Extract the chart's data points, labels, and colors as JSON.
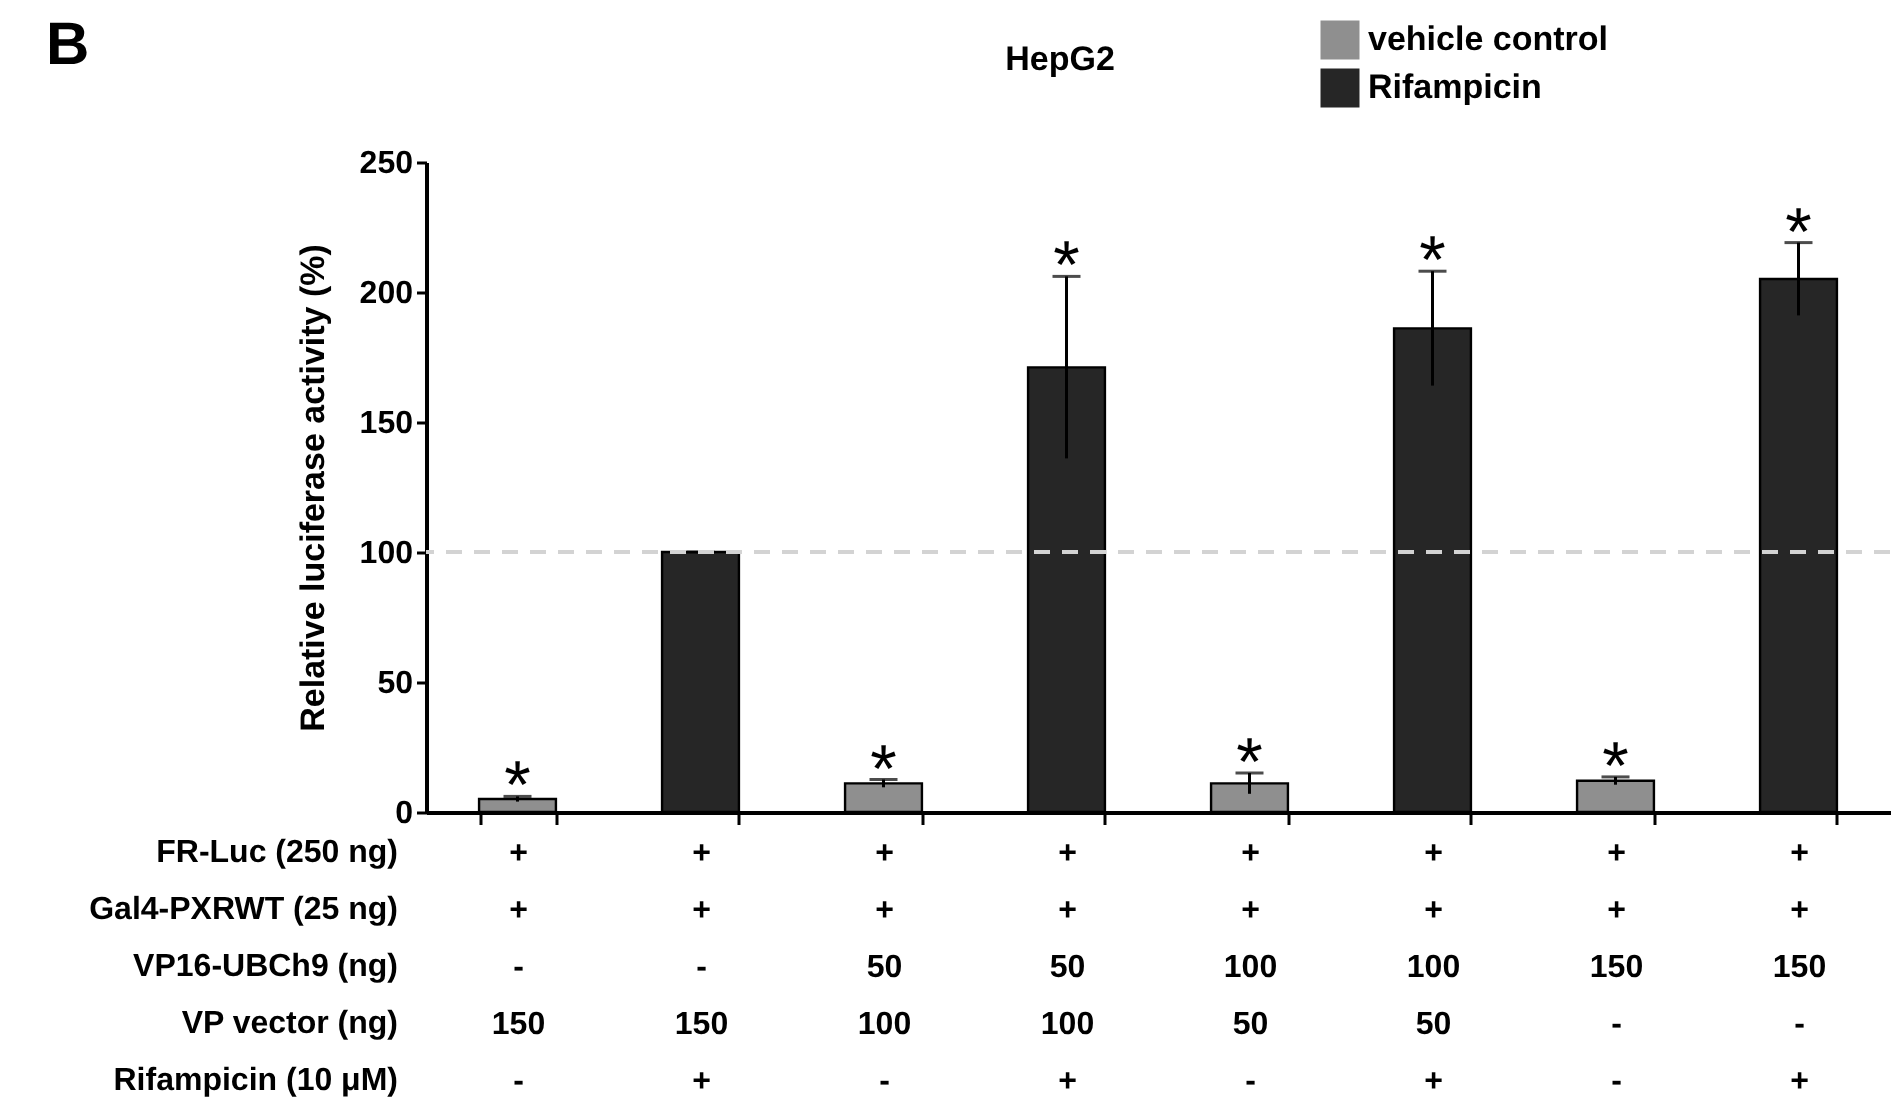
{
  "chart_data": {
    "type": "bar",
    "title": "HepG2",
    "ylabel": "Relative luciferase activity (%)",
    "xlabel": "FR-Luc (250 ng)\nGal4-PXRWT (25 ng)\nVP16-UBCh9  (ng)\nVP vector  (ng)\nRifampicin (10 μM)",
    "categories": [
      "+\n+\n-\n150\n-",
      "+\n+\n-\n150\n+",
      "+\n+\n50\n100\n-",
      "+\n+\n50\n100\n+",
      "+\n+\n100\n50\n-",
      "+\n+\n100\n50\n+",
      "+\n+\n150\n-\n-",
      "+\n+\n150\n-\n+"
    ],
    "series": [
      {
        "name": "vehicle control",
        "color": "#8f8f8f",
        "values": [
          5,
          null,
          11,
          null,
          11,
          null,
          12,
          null
        ],
        "errors": [
          1,
          null,
          1.5,
          null,
          4,
          null,
          1.5,
          null
        ],
        "value_labels": [
          "*",
          null,
          "*",
          null,
          "*",
          null,
          "*",
          null
        ]
      },
      {
        "name": "Rifampicin",
        "color": "#262626",
        "values": [
          null,
          100,
          null,
          171,
          null,
          186,
          null,
          205
        ],
        "errors": [
          null,
          0,
          null,
          35,
          null,
          22,
          null,
          14
        ],
        "value_labels": [
          null,
          null,
          null,
          "*",
          null,
          "*",
          null,
          "*"
        ]
      }
    ],
    "ylim": [
      0,
      250
    ],
    "yticks": [
      0,
      50,
      100,
      150,
      200,
      250
    ],
    "grid": false,
    "legend": "top right",
    "ref_lines": [
      {
        "axis": "y",
        "value": 100,
        "color": "#d3d3d3",
        "line_style": "dashed"
      }
    ],
    "annotations": [
      "B"
    ]
  }
}
